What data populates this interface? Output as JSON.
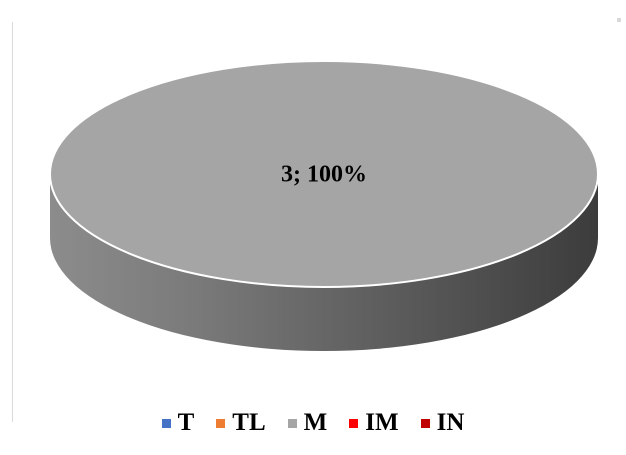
{
  "chart_data": {
    "type": "pie",
    "style": "3d",
    "title": "",
    "categories": [
      "T",
      "TL",
      "M",
      "IM",
      "IN"
    ],
    "values": [
      0,
      0,
      3,
      0,
      0
    ],
    "percent_labels": [
      "",
      "",
      "100%",
      "",
      ""
    ],
    "data_labels": [
      "",
      "",
      "3; 100%",
      "",
      ""
    ],
    "colors": [
      "#4472c4",
      "#ed7d31",
      "#a5a5a5",
      "#ff0000",
      "#c00000"
    ],
    "legend": "bottom",
    "legend_entries": [
      {
        "label": "T",
        "color": "#4472c4"
      },
      {
        "label": "TL",
        "color": "#ed7d31"
      },
      {
        "label": "M",
        "color": "#a5a5a5"
      },
      {
        "label": "IM",
        "color": "#ff0000"
      },
      {
        "label": "IN",
        "color": "#c00000"
      }
    ]
  }
}
